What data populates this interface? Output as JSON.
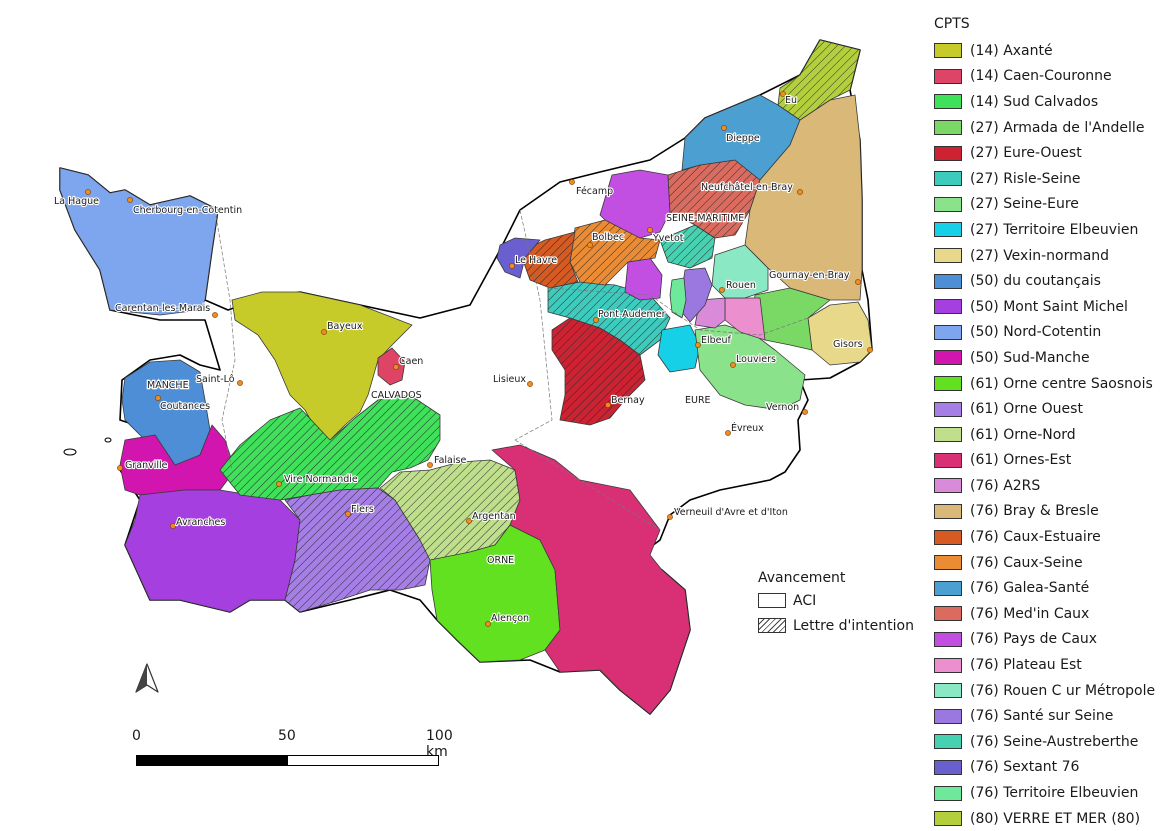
{
  "legend": {
    "title": "CPTS",
    "items": [
      {
        "label": "(14) Axanté",
        "color": "#c7cb2a"
      },
      {
        "label": "(14) Caen-Couronne",
        "color": "#de4466"
      },
      {
        "label": "(14) Sud Calvados",
        "color": "#3fe05a"
      },
      {
        "label": "(27) Armada de l'Andelle",
        "color": "#7ad865"
      },
      {
        "label": "(27) Eure-Ouest",
        "color": "#cc2232"
      },
      {
        "label": "(27) Risle-Seine",
        "color": "#3ccbbd"
      },
      {
        "label": "(27) Seine-Eure",
        "color": "#8ae38a"
      },
      {
        "label": "(27) Territoire Elbeuvien",
        "color": "#15d0e6"
      },
      {
        "label": "(27) Vexin-normand",
        "color": "#e8d98a"
      },
      {
        "label": "(50) du coutançais",
        "color": "#4d8ed6"
      },
      {
        "label": "(50) Mont Saint Michel",
        "color": "#a63fe0"
      },
      {
        "label": "(50) Nord-Cotentin",
        "color": "#7ea6ee"
      },
      {
        "label": "(50) Sud-Manche",
        "color": "#d315b0"
      },
      {
        "label": "(61) Orne centre Saosnois",
        "color": "#62e120"
      },
      {
        "label": "(61) Orne Ouest",
        "color": "#a57ee6"
      },
      {
        "label": "(61) Orne-Nord",
        "color": "#c0df8c"
      },
      {
        "label": "(61) Ornes-Est",
        "color": "#d93075"
      },
      {
        "label": "(76) A2RS",
        "color": "#d98ad8"
      },
      {
        "label": "(76) Bray & Bresle",
        "color": "#d9b878"
      },
      {
        "label": "(76) Caux-Estuaire",
        "color": "#d65a22"
      },
      {
        "label": "(76) Caux-Seine",
        "color": "#eb8c34"
      },
      {
        "label": "(76) Galea-Santé",
        "color": "#4ba0d1"
      },
      {
        "label": "(76) Med'in Caux",
        "color": "#da6b5e"
      },
      {
        "label": "(76) Pays de Caux",
        "color": "#c34ee2"
      },
      {
        "label": "(76) Plateau Est",
        "color": "#ec8fcf"
      },
      {
        "label": "(76) Rouen C ur Métropole",
        "color": "#8ae8c4"
      },
      {
        "label": "(76) Santé sur Seine",
        "color": "#9b78e0"
      },
      {
        "label": "(76) Seine-Austreberthe",
        "color": "#46d1b0"
      },
      {
        "label": "(76) Sextant 76",
        "color": "#6a5fcf"
      },
      {
        "label": "(76) Territoire Elbeuvien",
        "color": "#6ee89a"
      },
      {
        "label": "(80) VERRE ET MER (80)",
        "color": "#b3d03c"
      }
    ]
  },
  "avancement": {
    "title": "Avancement",
    "items": [
      {
        "label": "ACI",
        "pattern": "solid"
      },
      {
        "label": "Lettre d'intention",
        "pattern": "hatched"
      }
    ]
  },
  "scale": {
    "ticks": [
      "0",
      "50",
      "100 km"
    ]
  },
  "north_arrow": "north-arrow-icon",
  "departments": [
    "MANCHE",
    "CALVADOS",
    "SEINE-MARITIME",
    "EURE",
    "ORNE"
  ],
  "cities": [
    "La Hague",
    "Cherbourg-en-Cotentin",
    "Carentan-les-Marais",
    "Saint-Lô",
    "Coutances",
    "Granville",
    "Avranches",
    "Bayeux",
    "Caen",
    "Vire Normandie",
    "Flers",
    "Falaise",
    "Argentan",
    "Alençon",
    "Lisieux",
    "Bernay",
    "Pont-Audemer",
    "Le Havre",
    "Fécamp",
    "Bolbec",
    "Yvetot",
    "Dieppe",
    "Eu",
    "Neufchâtel-en-Bray",
    "Gournay-en-Bray",
    "Rouen",
    "Elbeuf",
    "Louviers",
    "Gisors",
    "Vernon",
    "Évreux",
    "Verneuil d'Avre et d'Iton"
  ]
}
